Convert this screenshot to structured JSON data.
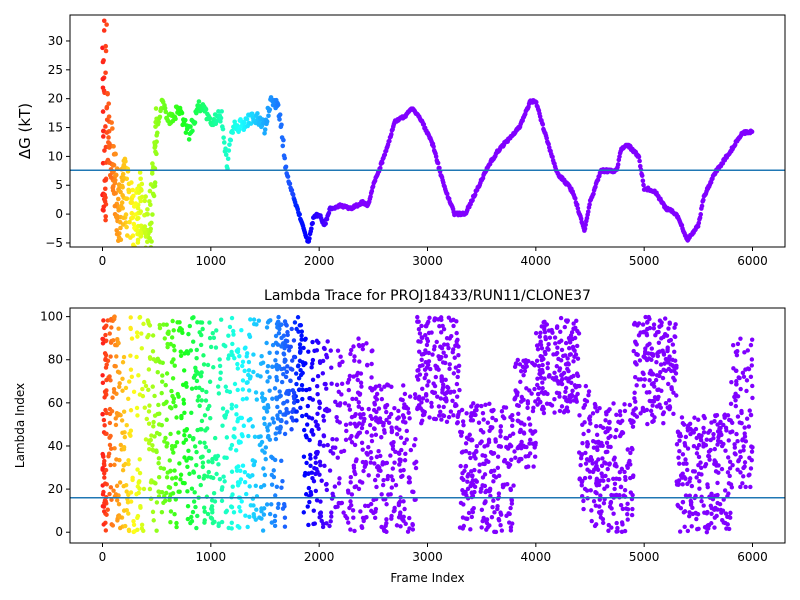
{
  "chart_data": [
    {
      "type": "scatter",
      "title": "",
      "xlabel": "",
      "ylabel": "ΔG (kT)",
      "xlim": [
        -300,
        6300
      ],
      "ylim": [
        -5.7,
        34.5
      ],
      "xticks": [
        0,
        1000,
        2000,
        3000,
        4000,
        5000,
        6000
      ],
      "yticks": [
        -5,
        0,
        5,
        10,
        15,
        20,
        25,
        30
      ],
      "xticklabels": [
        "0",
        "1000",
        "2000",
        "3000",
        "4000",
        "5000",
        "6000"
      ],
      "yticklabels": [
        "−5",
        "0",
        "5",
        "10",
        "15",
        "20",
        "25",
        "30"
      ],
      "hline": 7.6,
      "hline_color": "#1f77b4",
      "colormap": "rainbow (reversed: red at frame 0, violet at late frames)",
      "trace_keypoints": [
        [
          0,
          20
        ],
        [
          50,
          15
        ],
        [
          100,
          8
        ],
        [
          150,
          0
        ],
        [
          200,
          4
        ],
        [
          250,
          1
        ],
        [
          300,
          -3
        ],
        [
          350,
          2
        ],
        [
          400,
          -3
        ],
        [
          450,
          0
        ],
        [
          500,
          14
        ],
        [
          550,
          20
        ],
        [
          600,
          16
        ],
        [
          700,
          18
        ],
        [
          800,
          14
        ],
        [
          900,
          19
        ],
        [
          1000,
          16
        ],
        [
          1100,
          17
        ],
        [
          1150,
          8
        ],
        [
          1200,
          15
        ],
        [
          1300,
          15.5
        ],
        [
          1400,
          17
        ],
        [
          1500,
          15
        ],
        [
          1550,
          19.5
        ],
        [
          1620,
          19
        ],
        [
          1650,
          15
        ],
        [
          1700,
          7
        ],
        [
          1780,
          2
        ],
        [
          1850,
          -2
        ],
        [
          1900,
          -5
        ],
        [
          1950,
          -0.5
        ],
        [
          2000,
          0
        ],
        [
          2050,
          -2
        ],
        [
          2100,
          1
        ],
        [
          2200,
          1.5
        ],
        [
          2300,
          1
        ],
        [
          2400,
          2
        ],
        [
          2450,
          1.5
        ],
        [
          2500,
          5
        ],
        [
          2600,
          10
        ],
        [
          2700,
          16
        ],
        [
          2800,
          17
        ],
        [
          2850,
          18.5
        ],
        [
          2950,
          16
        ],
        [
          3050,
          12
        ],
        [
          3150,
          5
        ],
        [
          3250,
          0
        ],
        [
          3350,
          0
        ],
        [
          3450,
          4
        ],
        [
          3550,
          8
        ],
        [
          3650,
          11
        ],
        [
          3750,
          13
        ],
        [
          3850,
          15
        ],
        [
          3950,
          19.5
        ],
        [
          4000,
          19.5
        ],
        [
          4100,
          13
        ],
        [
          4200,
          7
        ],
        [
          4300,
          5
        ],
        [
          4350,
          3.5
        ],
        [
          4450,
          -3
        ],
        [
          4500,
          2
        ],
        [
          4600,
          7.5
        ],
        [
          4750,
          7.5
        ],
        [
          4780,
          11
        ],
        [
          4850,
          12
        ],
        [
          4900,
          11
        ],
        [
          4950,
          10
        ],
        [
          5000,
          4.5
        ],
        [
          5100,
          4
        ],
        [
          5200,
          1
        ],
        [
          5300,
          0
        ],
        [
          5400,
          -4.5
        ],
        [
          5500,
          -2
        ],
        [
          5550,
          3
        ],
        [
          5650,
          7
        ],
        [
          5800,
          11
        ],
        [
          5900,
          14
        ],
        [
          6000,
          14.3
        ]
      ]
    },
    {
      "type": "scatter",
      "title": "Lambda Trace for PROJ18433/RUN11/CLONE37",
      "xlabel": "Frame Index",
      "ylabel": "Lambda Index",
      "xlim": [
        -300,
        6300
      ],
      "ylim": [
        -5,
        104
      ],
      "xticks": [
        0,
        1000,
        2000,
        3000,
        4000,
        5000,
        6000
      ],
      "yticks": [
        0,
        20,
        40,
        60,
        80,
        100
      ],
      "xticklabels": [
        "0",
        "1000",
        "2000",
        "3000",
        "4000",
        "5000",
        "6000"
      ],
      "yticklabels": [
        "0",
        "20",
        "40",
        "60",
        "80",
        "100"
      ],
      "hline": 16,
      "hline_color": "#1f77b4",
      "colormap": "rainbow (reversed: red at frame 0, violet at late frames)",
      "bands": [
        {
          "x": [
            0,
            1700
          ],
          "y": [
            0,
            100
          ]
        },
        {
          "x": [
            1600,
            1850
          ],
          "y": [
            45,
            100
          ]
        },
        {
          "x": [
            1850,
            2500
          ],
          "y": [
            0,
            90
          ]
        },
        {
          "x": [
            2500,
            2900
          ],
          "y": [
            0,
            70
          ]
        },
        {
          "x": [
            2900,
            3300
          ],
          "y": [
            50,
            100
          ]
        },
        {
          "x": [
            3300,
            3800
          ],
          "y": [
            0,
            60
          ]
        },
        {
          "x": [
            3800,
            4000
          ],
          "y": [
            30,
            80
          ]
        },
        {
          "x": [
            4000,
            4400
          ],
          "y": [
            55,
            100
          ]
        },
        {
          "x": [
            4400,
            4500
          ],
          "y": [
            10,
            70
          ]
        },
        {
          "x": [
            4500,
            4900
          ],
          "y": [
            0,
            60
          ]
        },
        {
          "x": [
            4900,
            5300
          ],
          "y": [
            50,
            100
          ]
        },
        {
          "x": [
            5300,
            5800
          ],
          "y": [
            0,
            55
          ]
        },
        {
          "x": [
            5800,
            6000
          ],
          "y": [
            20,
            90
          ]
        }
      ]
    }
  ]
}
